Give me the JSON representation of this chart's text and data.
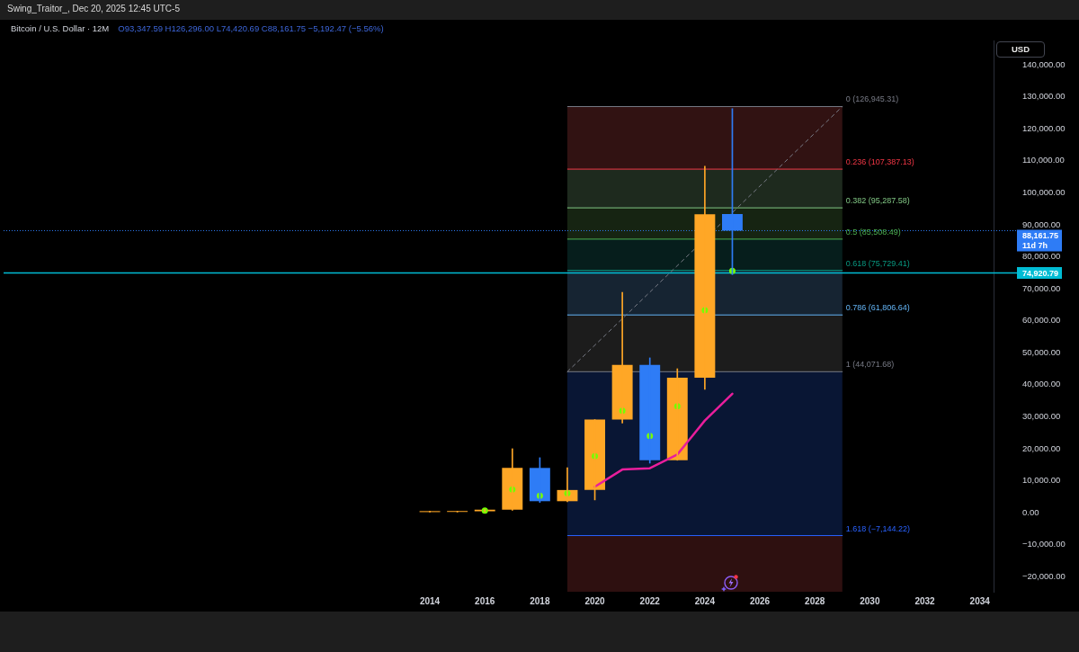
{
  "chart_data": {
    "type": "candlestick",
    "title": "Bitcoin / U.S. Dollar · 12M",
    "subtitle": "O93,347.59 H126,296.00 L74,420.69 C88,161.75 −5,192.47 (−5.56%)",
    "annotations": [
      "Swing_Traitor_, Dec 20, 2025 12:45 UTC-5",
      "USD"
    ],
    "xlim": [
      1998.5,
      2034.5
    ],
    "xticks": [
      2014,
      2016,
      2018,
      2020,
      2022,
      2024,
      2026,
      2028,
      2030,
      2032,
      2034
    ],
    "ylim": [
      -24700,
      147600
    ],
    "yticks": [
      {
        "value": 140000,
        "label": "140,000.00"
      },
      {
        "value": 130000,
        "label": "130,000.00"
      },
      {
        "value": 120000,
        "label": "120,000.00"
      },
      {
        "value": 110000,
        "label": "110,000.00"
      },
      {
        "value": 100000,
        "label": "100,000.00"
      },
      {
        "value": 90000,
        "label": "90,000.00"
      },
      {
        "value": 80000,
        "label": "80,000.00"
      },
      {
        "value": 70000,
        "label": "70,000.00"
      },
      {
        "value": 60000,
        "label": "60,000.00"
      },
      {
        "value": 50000,
        "label": "50,000.00"
      },
      {
        "value": 40000,
        "label": "40,000.00"
      },
      {
        "value": 30000,
        "label": "30,000.00"
      },
      {
        "value": 20000,
        "label": "20,000.00"
      },
      {
        "value": 10000,
        "label": "10,000.00"
      },
      {
        "value": 0,
        "label": "0.00"
      },
      {
        "value": -10000,
        "label": "−10,000.00"
      },
      {
        "value": -20000,
        "label": "−20,000.00"
      }
    ],
    "grid": false,
    "legend": false,
    "series": [
      {
        "x": [
          2014,
          2015,
          2016,
          2017,
          2018,
          2019,
          2020,
          2021,
          2022,
          2023,
          2024,
          2025
        ],
        "ohlc": [
          [
            200,
            500,
            200,
            500
          ],
          [
            250,
            500,
            200,
            500
          ],
          [
            450,
            1000,
            350,
            950
          ],
          [
            950,
            20000,
            750,
            14000
          ],
          [
            14000,
            17200,
            3200,
            3600
          ],
          [
            3600,
            14100,
            3400,
            7100
          ],
          [
            7100,
            29100,
            4000,
            29100
          ],
          [
            29100,
            68900,
            28000,
            46200
          ],
          [
            46200,
            48400,
            15500,
            16400
          ],
          [
            16400,
            45000,
            16400,
            42200
          ],
          [
            42200,
            108300,
            38600,
            93300
          ],
          [
            93347.59,
            126296.0,
            74420.69,
            88161.75
          ]
        ],
        "colors": [
          "#ffa726",
          "#ffa726",
          "#ffa726",
          "#ffa726",
          "#2e7cf6",
          "#ffa726",
          "#ffa726",
          "#ffa726",
          "#2e7cf6",
          "#ffa726",
          "#ffa726",
          "#2e7cf6"
        ]
      },
      {
        "type": "scatter",
        "x": [
          2016,
          2017,
          2018,
          2019,
          2020,
          2021,
          2022,
          2023,
          2024,
          2025
        ],
        "values": [
          700,
          7300,
          5300,
          6100,
          17700,
          31900,
          24000,
          33300,
          63300,
          75600
        ],
        "color": "#76ff03",
        "marker": "circle"
      },
      {
        "type": "line",
        "x": [
          2020,
          2021,
          2022,
          2023,
          2024,
          2025
        ],
        "values": [
          8100,
          13500,
          13900,
          18200,
          28800,
          37200
        ],
        "color": "#e91e9c"
      },
      {
        "type": "line",
        "x": [
          2019,
          2029
        ],
        "values": [
          44071.68,
          126945.31
        ],
        "color": "#787b86",
        "line_style": "dashed"
      },
      {
        "type": "line",
        "name": "0 (126,945.31)",
        "x": [
          2019,
          2029
        ],
        "values": [
          126945.31,
          126945.31
        ],
        "color": "#787b86"
      },
      {
        "type": "line",
        "name": "0.236 (107,387.13)",
        "x": [
          2019,
          2029
        ],
        "values": [
          107387.13,
          107387.13
        ],
        "color": "#f23645"
      },
      {
        "type": "line",
        "name": "0.382 (95,287.58)",
        "x": [
          2019,
          2029
        ],
        "values": [
          95287.58,
          95287.58
        ],
        "color": "#81c784"
      },
      {
        "type": "line",
        "name": "0.5 (85,508.49)",
        "x": [
          2019,
          2029
        ],
        "values": [
          85508.49,
          85508.49
        ],
        "color": "#4caf50"
      },
      {
        "type": "line",
        "name": "0.618 (75,729.41)",
        "x": [
          2019,
          2029
        ],
        "values": [
          75729.41,
          75729.41
        ],
        "color": "#089981"
      },
      {
        "type": "line",
        "name": "0.786 (61,806.64)",
        "x": [
          2019,
          2029
        ],
        "values": [
          61806.64,
          61806.64
        ],
        "color": "#64b5f6"
      },
      {
        "type": "line",
        "name": "1 (44,071.68)",
        "x": [
          2019,
          2029
        ],
        "values": [
          44071.68,
          44071.68
        ],
        "color": "#787b86"
      },
      {
        "type": "line",
        "name": "1.618 (−7,144.22)",
        "x": [
          2019,
          2029
        ],
        "values": [
          -7144.22,
          -7144.22
        ],
        "color": "#2962ff"
      }
    ],
    "bands": [
      {
        "axis": "y",
        "from": 107387.13,
        "to": 126945.31,
        "color": "#311212"
      },
      {
        "axis": "y",
        "from": 95287.58,
        "to": 107387.13,
        "color": "#1e2a1e"
      },
      {
        "axis": "y",
        "from": 85508.49,
        "to": 95287.58,
        "color": "#162412"
      },
      {
        "axis": "y",
        "from": 75729.41,
        "to": 85508.49,
        "color": "#061e1c"
      },
      {
        "axis": "y",
        "from": 61806.64,
        "to": 75729.41,
        "color": "#162432"
      },
      {
        "axis": "y",
        "from": 44071.68,
        "to": 61806.64,
        "color": "#1c1c1c"
      },
      {
        "axis": "y",
        "from": -7144.22,
        "to": 44071.68,
        "color": "#091634"
      },
      {
        "axis": "y",
        "from": -24700,
        "to": -7144.22,
        "color": "#2e1010"
      }
    ],
    "ref_lines": [
      {
        "axis": "y",
        "value": 88161.75,
        "label": "88,161.75\n11d 7h",
        "color": "#2e7cf6",
        "line_style": "dotted"
      },
      {
        "axis": "y",
        "value": 74920.79,
        "label": "74,920.79",
        "color": "#00bcd4"
      }
    ]
  }
}
